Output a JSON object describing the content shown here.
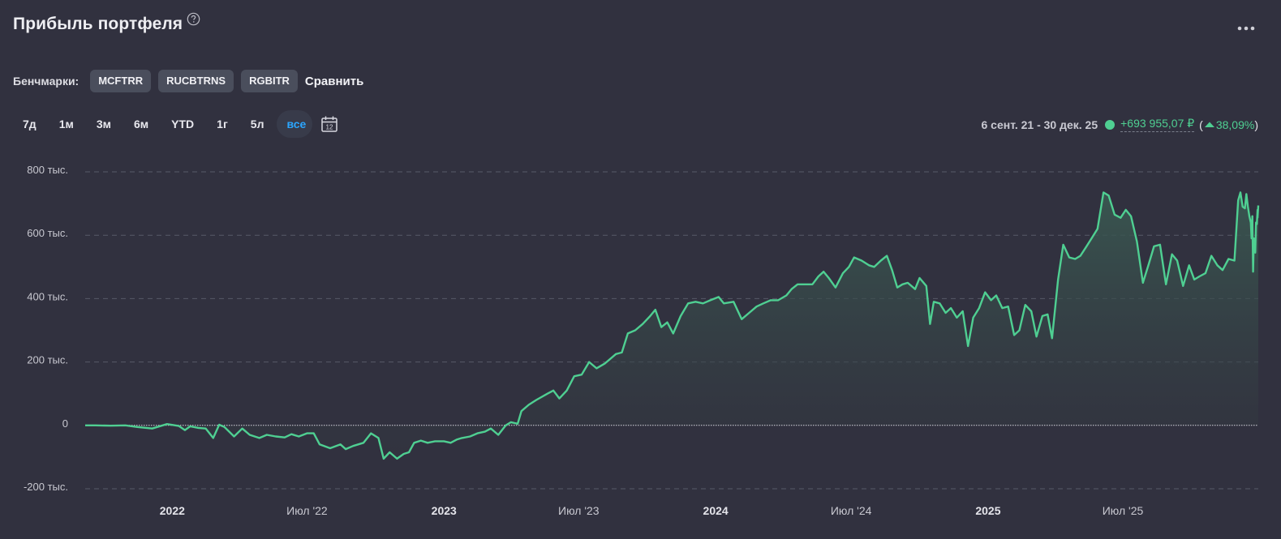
{
  "header": {
    "title": "Прибыль портфеля",
    "help_icon": "help-circle-icon",
    "more_icon": "more-horizontal-icon"
  },
  "benchmarks": {
    "label": "Бенчмарки:",
    "chips": [
      "MCFTRR",
      "RUCBTRNS",
      "RGBITR"
    ],
    "compare_label": "Сравнить"
  },
  "periods": [
    "7д",
    "1м",
    "3м",
    "6м",
    "YTD",
    "1г",
    "5л",
    "все"
  ],
  "active_period": "все",
  "calendar_icon": "calendar-icon",
  "calendar_day": "12",
  "summary": {
    "range": "6 сент. 21 - 30 дек. 25",
    "profit": "+693 955,07 ₽",
    "paren_open": "(",
    "pct": "38,09%",
    "paren_close": ")",
    "up_icon": "arrow-up-icon"
  },
  "colors": {
    "background": "#31313f",
    "line": "#4fcf92",
    "accent": "#2ba6ff",
    "grid": "#5a5d6b"
  },
  "chart_data": {
    "type": "area",
    "title": "",
    "xlabel": "",
    "ylabel": "",
    "ylim": [
      -200000,
      800000
    ],
    "y_ticks": [
      {
        "value": 800000,
        "label": "800 тыс."
      },
      {
        "value": 600000,
        "label": "600 тыс."
      },
      {
        "value": 400000,
        "label": "400 тыс."
      },
      {
        "value": 200000,
        "label": "200 тыс."
      },
      {
        "value": 0,
        "label": "0"
      },
      {
        "value": -200000,
        "label": "-200 тыс."
      }
    ],
    "x_range": [
      "2021-09-06",
      "2025-12-30"
    ],
    "x_ticks": [
      {
        "date": "2022-01-01",
        "label": "2022",
        "bold": true
      },
      {
        "date": "2022-07-01",
        "label": "Июл '22",
        "bold": false
      },
      {
        "date": "2023-01-01",
        "label": "2023",
        "bold": true
      },
      {
        "date": "2023-07-01",
        "label": "Июл '23",
        "bold": false
      },
      {
        "date": "2024-01-01",
        "label": "2024",
        "bold": true
      },
      {
        "date": "2024-07-01",
        "label": "Июл '24",
        "bold": false
      },
      {
        "date": "2025-01-01",
        "label": "2025",
        "bold": true
      },
      {
        "date": "2025-07-01",
        "label": "Июл '25",
        "bold": false
      }
    ],
    "grid": true,
    "series": [
      {
        "values": [
          [
            "2021-09-06",
            0
          ],
          [
            "2021-09-20",
            0
          ],
          [
            "2021-10-10",
            -1000
          ],
          [
            "2021-10-30",
            0
          ],
          [
            "2021-11-15",
            -5000
          ],
          [
            "2021-12-05",
            -10000
          ],
          [
            "2021-12-25",
            4000
          ],
          [
            "2022-01-10",
            -2000
          ],
          [
            "2022-01-18",
            -15000
          ],
          [
            "2022-01-25",
            -3000
          ],
          [
            "2022-02-05",
            -8000
          ],
          [
            "2022-02-15",
            -10000
          ],
          [
            "2022-02-25",
            -40000
          ],
          [
            "2022-03-05",
            2000
          ],
          [
            "2022-03-12",
            -5000
          ],
          [
            "2022-03-25",
            -35000
          ],
          [
            "2022-04-05",
            -10000
          ],
          [
            "2022-04-15",
            -30000
          ],
          [
            "2022-04-28",
            -40000
          ],
          [
            "2022-05-08",
            -30000
          ],
          [
            "2022-05-20",
            -35000
          ],
          [
            "2022-06-01",
            -38000
          ],
          [
            "2022-06-10",
            -28000
          ],
          [
            "2022-06-20",
            -35000
          ],
          [
            "2022-07-01",
            -25000
          ],
          [
            "2022-07-10",
            -25000
          ],
          [
            "2022-07-18",
            -60000
          ],
          [
            "2022-08-01",
            -72000
          ],
          [
            "2022-08-15",
            -60000
          ],
          [
            "2022-08-22",
            -75000
          ],
          [
            "2022-09-01",
            -65000
          ],
          [
            "2022-09-15",
            -55000
          ],
          [
            "2022-09-25",
            -25000
          ],
          [
            "2022-10-05",
            -40000
          ],
          [
            "2022-10-12",
            -105000
          ],
          [
            "2022-10-20",
            -85000
          ],
          [
            "2022-10-30",
            -105000
          ],
          [
            "2022-11-08",
            -90000
          ],
          [
            "2022-11-15",
            -85000
          ],
          [
            "2022-11-22",
            -55000
          ],
          [
            "2022-12-01",
            -48000
          ],
          [
            "2022-12-10",
            -55000
          ],
          [
            "2022-12-20",
            -50000
          ],
          [
            "2023-01-01",
            -50000
          ],
          [
            "2023-01-10",
            -55000
          ],
          [
            "2023-01-18",
            -45000
          ],
          [
            "2023-01-25",
            -40000
          ],
          [
            "2023-02-05",
            -35000
          ],
          [
            "2023-02-15",
            -25000
          ],
          [
            "2023-02-25",
            -20000
          ],
          [
            "2023-03-05",
            -10000
          ],
          [
            "2023-03-15",
            -30000
          ],
          [
            "2023-03-25",
            0
          ],
          [
            "2023-04-01",
            10000
          ],
          [
            "2023-04-10",
            5000
          ],
          [
            "2023-04-15",
            45000
          ],
          [
            "2023-04-25",
            65000
          ],
          [
            "2023-05-05",
            80000
          ],
          [
            "2023-05-20",
            100000
          ],
          [
            "2023-05-28",
            110000
          ],
          [
            "2023-06-05",
            85000
          ],
          [
            "2023-06-15",
            110000
          ],
          [
            "2023-06-25",
            155000
          ],
          [
            "2023-07-05",
            160000
          ],
          [
            "2023-07-15",
            200000
          ],
          [
            "2023-07-25",
            180000
          ],
          [
            "2023-08-05",
            195000
          ],
          [
            "2023-08-20",
            225000
          ],
          [
            "2023-08-28",
            230000
          ],
          [
            "2023-09-05",
            290000
          ],
          [
            "2023-09-15",
            300000
          ],
          [
            "2023-09-25",
            320000
          ],
          [
            "2023-10-05",
            345000
          ],
          [
            "2023-10-12",
            365000
          ],
          [
            "2023-10-20",
            310000
          ],
          [
            "2023-10-28",
            325000
          ],
          [
            "2023-11-05",
            290000
          ],
          [
            "2023-11-15",
            345000
          ],
          [
            "2023-11-25",
            385000
          ],
          [
            "2023-12-05",
            390000
          ],
          [
            "2023-12-15",
            385000
          ],
          [
            "2023-12-25",
            395000
          ],
          [
            "2024-01-05",
            405000
          ],
          [
            "2024-01-12",
            385000
          ],
          [
            "2024-01-25",
            390000
          ],
          [
            "2024-02-05",
            335000
          ],
          [
            "2024-02-15",
            355000
          ],
          [
            "2024-02-25",
            375000
          ],
          [
            "2024-03-05",
            385000
          ],
          [
            "2024-03-15",
            395000
          ],
          [
            "2024-03-25",
            395000
          ],
          [
            "2024-04-05",
            410000
          ],
          [
            "2024-04-12",
            430000
          ],
          [
            "2024-04-20",
            445000
          ],
          [
            "2024-05-01",
            445000
          ],
          [
            "2024-05-10",
            445000
          ],
          [
            "2024-05-18",
            470000
          ],
          [
            "2024-05-25",
            485000
          ],
          [
            "2024-06-01",
            465000
          ],
          [
            "2024-06-10",
            435000
          ],
          [
            "2024-06-20",
            480000
          ],
          [
            "2024-06-28",
            500000
          ],
          [
            "2024-07-05",
            530000
          ],
          [
            "2024-07-15",
            520000
          ],
          [
            "2024-07-25",
            505000
          ],
          [
            "2024-08-01",
            500000
          ],
          [
            "2024-08-10",
            520000
          ],
          [
            "2024-08-18",
            535000
          ],
          [
            "2024-08-25",
            490000
          ],
          [
            "2024-09-01",
            435000
          ],
          [
            "2024-09-08",
            445000
          ],
          [
            "2024-09-15",
            450000
          ],
          [
            "2024-09-25",
            430000
          ],
          [
            "2024-10-01",
            465000
          ],
          [
            "2024-10-10",
            440000
          ],
          [
            "2024-10-15",
            320000
          ],
          [
            "2024-10-20",
            390000
          ],
          [
            "2024-10-28",
            385000
          ],
          [
            "2024-11-05",
            355000
          ],
          [
            "2024-11-12",
            370000
          ],
          [
            "2024-11-20",
            340000
          ],
          [
            "2024-11-28",
            360000
          ],
          [
            "2024-12-05",
            250000
          ],
          [
            "2024-12-12",
            340000
          ],
          [
            "2024-12-20",
            370000
          ],
          [
            "2024-12-28",
            420000
          ],
          [
            "2025-01-05",
            395000
          ],
          [
            "2025-01-12",
            410000
          ],
          [
            "2025-01-20",
            370000
          ],
          [
            "2025-01-28",
            375000
          ],
          [
            "2025-02-05",
            285000
          ],
          [
            "2025-02-12",
            300000
          ],
          [
            "2025-02-20",
            380000
          ],
          [
            "2025-02-28",
            360000
          ],
          [
            "2025-03-07",
            280000
          ],
          [
            "2025-03-15",
            345000
          ],
          [
            "2025-03-22",
            350000
          ],
          [
            "2025-03-28",
            275000
          ],
          [
            "2025-04-05",
            460000
          ],
          [
            "2025-04-12",
            570000
          ],
          [
            "2025-04-20",
            530000
          ],
          [
            "2025-04-28",
            525000
          ],
          [
            "2025-05-05",
            535000
          ],
          [
            "2025-05-12",
            560000
          ],
          [
            "2025-05-20",
            590000
          ],
          [
            "2025-05-28",
            620000
          ],
          [
            "2025-06-05",
            735000
          ],
          [
            "2025-06-12",
            725000
          ],
          [
            "2025-06-20",
            665000
          ],
          [
            "2025-06-28",
            655000
          ],
          [
            "2025-07-05",
            680000
          ],
          [
            "2025-07-12",
            660000
          ],
          [
            "2025-07-20",
            580000
          ],
          [
            "2025-07-28",
            450000
          ],
          [
            "2025-08-05",
            510000
          ],
          [
            "2025-08-12",
            565000
          ],
          [
            "2025-08-20",
            570000
          ],
          [
            "2025-08-28",
            445000
          ],
          [
            "2025-09-05",
            540000
          ],
          [
            "2025-09-12",
            520000
          ],
          [
            "2025-09-20",
            440000
          ],
          [
            "2025-09-28",
            505000
          ],
          [
            "2025-10-05",
            460000
          ],
          [
            "2025-10-12",
            470000
          ],
          [
            "2025-10-20",
            480000
          ],
          [
            "2025-10-28",
            535000
          ],
          [
            "2025-11-05",
            505000
          ],
          [
            "2025-11-12",
            490000
          ],
          [
            "2025-11-20",
            525000
          ],
          [
            "2025-11-28",
            520000
          ],
          [
            "2025-12-03",
            710000
          ],
          [
            "2025-12-06",
            735000
          ],
          [
            "2025-12-09",
            690000
          ],
          [
            "2025-12-12",
            685000
          ],
          [
            "2025-12-14",
            730000
          ],
          [
            "2025-12-16",
            690000
          ],
          [
            "2025-12-18",
            660000
          ],
          [
            "2025-12-20",
            640000
          ],
          [
            "2025-12-21",
            590000
          ],
          [
            "2025-12-22",
            660000
          ],
          [
            "2025-12-23",
            485000
          ],
          [
            "2025-12-24",
            590000
          ],
          [
            "2025-12-25",
            580000
          ],
          [
            "2025-12-26",
            545000
          ],
          [
            "2025-12-27",
            640000
          ],
          [
            "2025-12-28",
            635000
          ],
          [
            "2025-12-29",
            680000
          ],
          [
            "2025-12-29",
            655000
          ],
          [
            "2025-12-30",
            693955
          ]
        ]
      }
    ]
  }
}
